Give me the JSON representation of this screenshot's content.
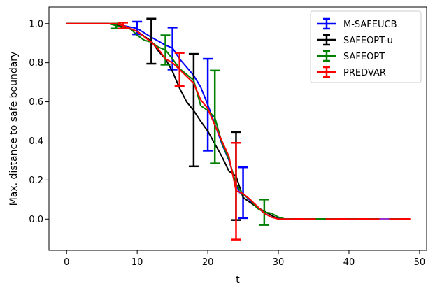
{
  "chart_data": {
    "type": "line",
    "title": "",
    "xlabel": "t",
    "ylabel": "Max. distance to safe boundary",
    "xlim": [
      -2.5,
      51
    ],
    "ylim": [
      -0.16,
      1.085
    ],
    "xticks": [
      0,
      10,
      20,
      30,
      40,
      50
    ],
    "yticks": [
      0.0,
      0.2,
      0.4,
      0.6,
      0.8,
      1.0
    ],
    "xtick_labels": [
      "0",
      "10",
      "20",
      "30",
      "40",
      "50"
    ],
    "ytick_labels": [
      "0.0",
      "0.2",
      "0.4",
      "0.6",
      "0.8",
      "1.0"
    ],
    "grid": false,
    "legend_position": "top-right",
    "series": [
      {
        "name": "M-SAFEUCB",
        "color": "#0000ff",
        "x": [
          0,
          6,
          8,
          10,
          12,
          14,
          15,
          16,
          18,
          19,
          20,
          21,
          22,
          23,
          24,
          24.5,
          25,
          26,
          27,
          28,
          29,
          30,
          31,
          48.5
        ],
        "y": [
          1.0,
          1.0,
          0.99,
          0.975,
          0.93,
          0.89,
          0.875,
          0.82,
          0.735,
          0.675,
          0.585,
          0.485,
          0.385,
          0.3,
          0.18,
          0.135,
          0.13,
          0.095,
          0.06,
          0.03,
          0.01,
          0.003,
          0.0,
          0.0
        ],
        "errorbars": [
          {
            "x": 10,
            "y": 0.975,
            "lo": 0.945,
            "hi": 1.01
          },
          {
            "x": 15,
            "y": 0.875,
            "lo": 0.765,
            "hi": 0.98
          },
          {
            "x": 20,
            "y": 0.585,
            "lo": 0.35,
            "hi": 0.82
          },
          {
            "x": 25,
            "y": 0.13,
            "lo": 0.005,
            "hi": 0.265
          }
        ]
      },
      {
        "name": "SAFEOPT-u",
        "color": "#000000",
        "x": [
          0,
          6,
          8,
          10,
          11,
          12,
          13,
          14,
          15,
          16,
          17,
          18,
          19,
          20,
          21,
          22,
          23,
          24,
          25,
          26,
          27,
          28,
          29,
          30,
          48.5
        ],
        "y": [
          1.0,
          1.0,
          0.985,
          0.96,
          0.935,
          0.91,
          0.86,
          0.82,
          0.755,
          0.67,
          0.6,
          0.555,
          0.5,
          0.45,
          0.385,
          0.32,
          0.245,
          0.22,
          0.11,
          0.085,
          0.06,
          0.04,
          0.02,
          0.0,
          0.0
        ],
        "errorbars": [
          {
            "x": 12,
            "y": 0.91,
            "lo": 0.795,
            "hi": 1.025
          },
          {
            "x": 18,
            "y": 0.555,
            "lo": 0.27,
            "hi": 0.845
          },
          {
            "x": 24,
            "y": 0.22,
            "lo": -0.005,
            "hi": 0.445
          }
        ]
      },
      {
        "name": "SAFEOPT",
        "color": "#008000",
        "x": [
          0,
          6,
          7,
          8,
          9,
          10,
          11,
          12,
          13,
          14,
          15,
          16,
          17,
          18,
          19,
          20,
          21,
          22,
          23,
          24,
          25,
          26,
          27,
          28,
          29,
          30,
          31,
          48.5
        ],
        "y": [
          1.0,
          1.0,
          0.99,
          0.98,
          0.975,
          0.94,
          0.915,
          0.905,
          0.88,
          0.865,
          0.82,
          0.77,
          0.74,
          0.71,
          0.58,
          0.555,
          0.52,
          0.39,
          0.305,
          0.18,
          0.125,
          0.1,
          0.055,
          0.035,
          0.03,
          0.01,
          0.0,
          0.0
        ],
        "errorbars": [
          {
            "x": 7,
            "y": 0.99,
            "lo": 0.975,
            "hi": 1.0
          },
          {
            "x": 14,
            "y": 0.865,
            "lo": 0.79,
            "hi": 0.94
          },
          {
            "x": 21,
            "y": 0.52,
            "lo": 0.285,
            "hi": 0.76
          },
          {
            "x": 28,
            "y": 0.035,
            "lo": -0.03,
            "hi": 0.1
          }
        ]
      },
      {
        "name": "PREDVAR",
        "color": "#ff0000",
        "x": [
          0,
          7,
          8,
          9,
          10,
          12,
          13,
          14,
          15,
          16,
          17,
          18,
          19,
          20,
          21,
          22,
          23,
          24,
          25,
          26,
          27,
          28,
          29,
          30,
          48.5
        ],
        "y": [
          1.0,
          1.0,
          0.99,
          0.975,
          0.96,
          0.905,
          0.87,
          0.82,
          0.8,
          0.765,
          0.73,
          0.695,
          0.61,
          0.565,
          0.48,
          0.4,
          0.32,
          0.145,
          0.13,
          0.1,
          0.065,
          0.03,
          0.01,
          0.0,
          0.0
        ],
        "errorbars": [
          {
            "x": 8,
            "y": 0.99,
            "lo": 0.975,
            "hi": 1.005
          },
          {
            "x": 16,
            "y": 0.765,
            "lo": 0.68,
            "hi": 0.85
          },
          {
            "x": 24,
            "y": 0.145,
            "lo": -0.105,
            "hi": 0.39
          }
        ]
      }
    ],
    "markers_on_zero": [
      {
        "x": 33,
        "color": "#ff0000"
      },
      {
        "x": 36,
        "color": "#008000"
      },
      {
        "x": 39,
        "color": "#ff0000"
      },
      {
        "x": 42,
        "color": "#ff0000"
      },
      {
        "x": 45,
        "color": "#9933cc"
      },
      {
        "x": 48,
        "color": "#ff0000"
      }
    ]
  }
}
